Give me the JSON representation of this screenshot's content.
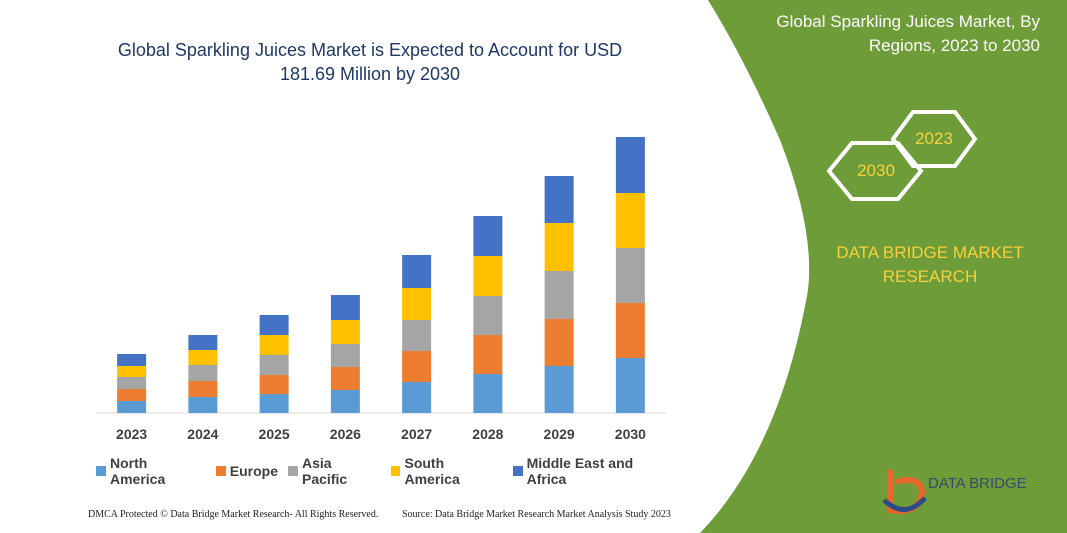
{
  "chart_data": {
    "type": "stacked-bar",
    "title": "Global Sparkling Juices Market is Expected to Account for USD 181.69 Million by 2030",
    "categories": [
      "2023",
      "2024",
      "2025",
      "2026",
      "2027",
      "2028",
      "2029",
      "2030"
    ],
    "series": [
      {
        "name": "North America",
        "color": "#5b9bd5",
        "values": [
          12,
          16,
          19,
          23,
          31,
          39,
          47,
          55
        ]
      },
      {
        "name": "Europe",
        "color": "#ed7d31",
        "values": [
          12,
          16,
          19,
          23,
          31,
          39,
          47,
          55
        ]
      },
      {
        "name": "Asia Pacific",
        "color": "#a5a5a5",
        "values": [
          12,
          16,
          20,
          23,
          31,
          39,
          48,
          55
        ]
      },
      {
        "name": "South America",
        "color": "#ffc000",
        "values": [
          11,
          15,
          20,
          24,
          32,
          40,
          48,
          55
        ]
      },
      {
        "name": "Middle East and Africa",
        "color": "#4472c4",
        "values": [
          12,
          15,
          20,
          25,
          33,
          40,
          47,
          56
        ]
      }
    ],
    "legend": "bottom"
  },
  "side_panel": {
    "title": "Global Sparkling Juices Market, By Regions, 2023 to 2030",
    "hexagons": [
      "2030",
      "2023"
    ],
    "brand": "DATA BRIDGE MARKET RESEARCH"
  },
  "footer": {
    "left": "DMCA Protected © Data Bridge Market Research- All Rights Reserved.",
    "right": "Source: Data Bridge Market Research Market Analysis Study 2023"
  },
  "logo": {
    "text": "DATA BRIDGE"
  }
}
